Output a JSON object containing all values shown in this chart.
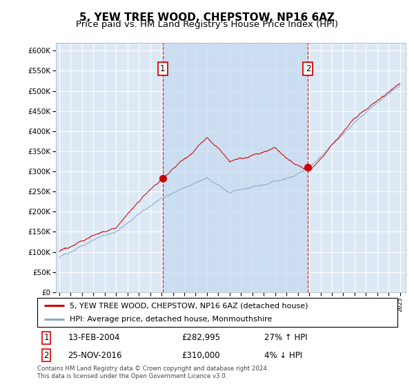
{
  "title": "5, YEW TREE WOOD, CHEPSTOW, NP16 6AZ",
  "subtitle": "Price paid vs. HM Land Registry's House Price Index (HPI)",
  "ylim": [
    0,
    620000
  ],
  "yticks": [
    0,
    50000,
    100000,
    150000,
    200000,
    250000,
    300000,
    350000,
    400000,
    450000,
    500000,
    550000,
    600000
  ],
  "xlim_start": 1994.7,
  "xlim_end": 2025.5,
  "plot_bg_color": "#dce9f5",
  "shade_color": "#c5d9ee",
  "grid_color": "#ffffff",
  "line_color_red": "#cc0000",
  "line_color_blue": "#88aacc",
  "sale1_year": 2004.1,
  "sale1_price": 282995,
  "sale2_year": 2016.9,
  "sale2_price": 310000,
  "legend_line1": "5, YEW TREE WOOD, CHEPSTOW, NP16 6AZ (detached house)",
  "legend_line2": "HPI: Average price, detached house, Monmouthshire",
  "footnote": "Contains HM Land Registry data © Crown copyright and database right 2024.\nThis data is licensed under the Open Government Licence v3.0.",
  "title_fontsize": 11,
  "subtitle_fontsize": 9.5
}
